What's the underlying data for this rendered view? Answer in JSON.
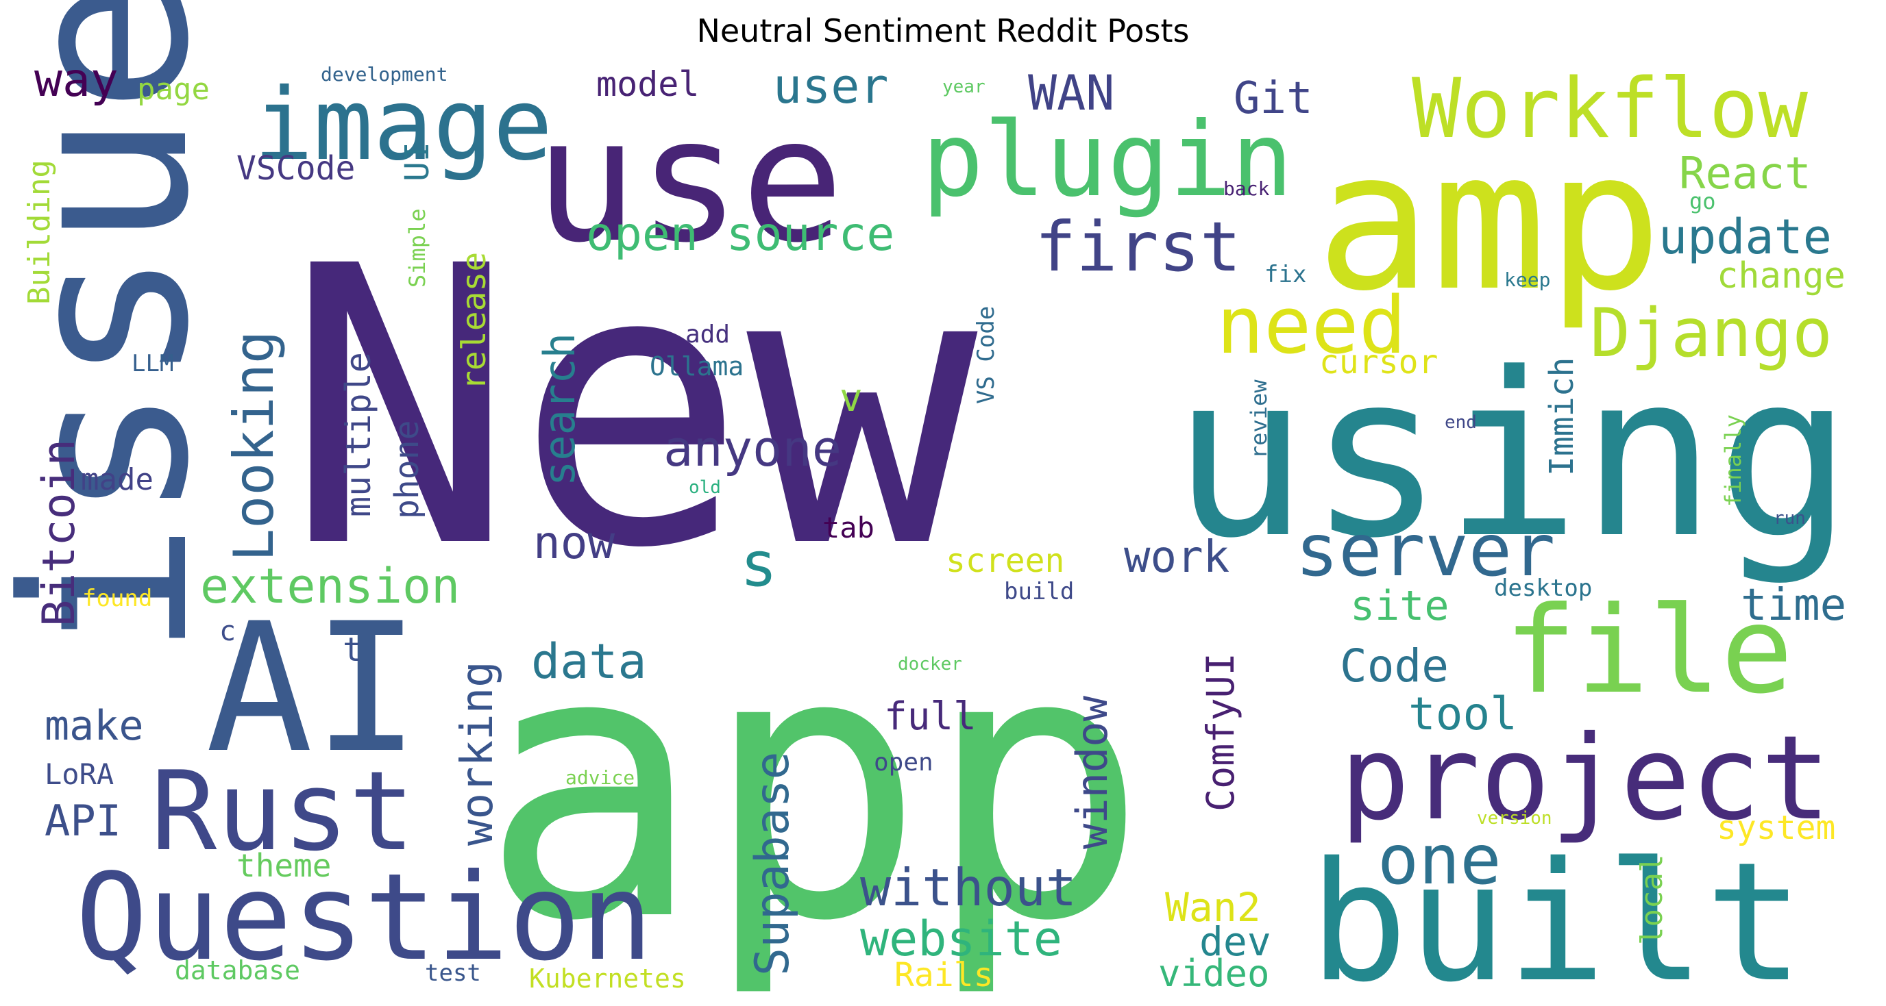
{
  "chart_data": {
    "type": "wordcloud",
    "title": "Neutral Sentiment Reddit Posts",
    "colormap": "viridis",
    "background": "#ffffff",
    "words": [
      {
        "text": "New",
        "weight": 1.0,
        "color": "#46287a"
      },
      {
        "text": "app",
        "weight": 0.93,
        "color": "#52c46a"
      },
      {
        "text": "issue",
        "weight": 0.62,
        "color": "#3b5b8e"
      },
      {
        "text": "use",
        "weight": 0.55,
        "color": "#482576"
      },
      {
        "text": "using",
        "weight": 0.54,
        "color": "#25858e"
      },
      {
        "text": "amp",
        "weight": 0.53,
        "color": "#cde11d"
      },
      {
        "text": "built",
        "weight": 0.48,
        "color": "#23888e"
      },
      {
        "text": "AI",
        "weight": 0.45,
        "color": "#3b5a8c"
      },
      {
        "text": "Question",
        "weight": 0.4,
        "color": "#3e4a89"
      },
      {
        "text": "project",
        "weight": 0.38,
        "color": "#472c7a"
      },
      {
        "text": "Rust",
        "weight": 0.36,
        "color": "#3f4889"
      },
      {
        "text": "file",
        "weight": 0.35,
        "color": "#79d151"
      },
      {
        "text": "image",
        "weight": 0.33,
        "color": "#2c728e"
      },
      {
        "text": "plugin",
        "weight": 0.33,
        "color": "#4ac16d"
      },
      {
        "text": "Workflow",
        "weight": 0.3,
        "color": "#bddf26"
      },
      {
        "text": "server",
        "weight": 0.25,
        "color": "#31688e"
      },
      {
        "text": "need",
        "weight": 0.24,
        "color": "#dde318"
      },
      {
        "text": "Django",
        "weight": 0.24,
        "color": "#b5de2b"
      },
      {
        "text": "first",
        "weight": 0.22,
        "color": "#414487"
      },
      {
        "text": "Looking",
        "weight": 0.21,
        "color": "#33638d"
      },
      {
        "text": "one",
        "weight": 0.19,
        "color": "#2d718e"
      },
      {
        "text": "without",
        "weight": 0.16,
        "color": "#3b528b"
      },
      {
        "text": "website",
        "weight": 0.16,
        "color": "#2fb47c"
      },
      {
        "text": "Supabase",
        "weight": 0.16,
        "color": "#31688e"
      },
      {
        "text": "extension",
        "weight": 0.15,
        "color": "#5ec962"
      },
      {
        "text": "Bitcoin",
        "weight": 0.15,
        "color": "#472d7b"
      },
      {
        "text": "s",
        "weight": 0.15,
        "color": "#228c8d"
      },
      {
        "text": "open source",
        "weight": 0.14,
        "color": "#3ebc73"
      },
      {
        "text": "update",
        "weight": 0.14,
        "color": "#29788e"
      },
      {
        "text": "working",
        "weight": 0.14,
        "color": "#39558c"
      },
      {
        "text": "anyone",
        "weight": 0.14,
        "color": "#453882"
      },
      {
        "text": "data",
        "weight": 0.14,
        "color": "#2a778e"
      },
      {
        "text": "Code",
        "weight": 0.14,
        "color": "#2c738e"
      },
      {
        "text": "window",
        "weight": 0.14,
        "color": "#3e4989"
      },
      {
        "text": "user",
        "weight": 0.13,
        "color": "#2a768e"
      },
      {
        "text": "search",
        "weight": 0.13,
        "color": "#277f8e"
      },
      {
        "text": "work",
        "weight": 0.12,
        "color": "#3d4e8a"
      },
      {
        "text": "time",
        "weight": 0.12,
        "color": "#2e6d8e"
      },
      {
        "text": "tool",
        "weight": 0.12,
        "color": "#25838e"
      },
      {
        "text": "ComfyUI",
        "weight": 0.12,
        "color": "#482071"
      },
      {
        "text": "React",
        "weight": 0.12,
        "color": "#86d549"
      },
      {
        "text": "Wan2",
        "weight": 0.12,
        "color": "#dde318"
      },
      {
        "text": "WAN",
        "weight": 0.12,
        "color": "#404387"
      },
      {
        "text": "now",
        "weight": 0.12,
        "color": "#433e85"
      },
      {
        "text": "site",
        "weight": 0.11,
        "color": "#46c06f"
      },
      {
        "text": "make",
        "weight": 0.11,
        "color": "#3a548c"
      },
      {
        "text": "way",
        "weight": 0.11,
        "color": "#440154"
      },
      {
        "text": "Git",
        "weight": 0.11,
        "color": "#404588"
      },
      {
        "text": "API",
        "weight": 0.11,
        "color": "#3c4f8a"
      },
      {
        "text": "dev",
        "weight": 0.1,
        "color": "#24868e"
      },
      {
        "text": "video",
        "weight": 0.1,
        "color": "#35b779"
      },
      {
        "text": "full",
        "weight": 0.1,
        "color": "#472a7a"
      },
      {
        "text": "model",
        "weight": 0.09,
        "color": "#482374"
      },
      {
        "text": "multiple",
        "weight": 0.09,
        "color": "#3f4788"
      },
      {
        "text": "Immich",
        "weight": 0.09,
        "color": "#2c728e"
      },
      {
        "text": "v",
        "weight": 0.09,
        "color": "#8fd744"
      },
      {
        "text": "release",
        "weight": 0.09,
        "color": "#a8db34"
      },
      {
        "text": "VSCode",
        "weight": 0.09,
        "color": "#453882"
      },
      {
        "text": "Rails",
        "weight": 0.09,
        "color": "#fde725"
      },
      {
        "text": "phone",
        "weight": 0.08,
        "color": "#3e4a89"
      },
      {
        "text": "cursor",
        "weight": 0.08,
        "color": "#dfe318"
      },
      {
        "text": "change",
        "weight": 0.08,
        "color": "#a0da39"
      },
      {
        "text": "screen",
        "weight": 0.08,
        "color": "#d0e11c"
      },
      {
        "text": "system",
        "weight": 0.08,
        "color": "#fde725"
      },
      {
        "text": "theme",
        "weight": 0.08,
        "color": "#65cb5e"
      },
      {
        "text": "local",
        "weight": 0.08,
        "color": "#7ad151"
      },
      {
        "text": "UI",
        "weight": 0.08,
        "color": "#2a788e"
      },
      {
        "text": "Building",
        "weight": 0.08,
        "color": "#a2da37"
      },
      {
        "text": "page",
        "weight": 0.08,
        "color": "#93d741"
      },
      {
        "text": "LoRA",
        "weight": 0.07,
        "color": "#3e4c8a"
      },
      {
        "text": "made",
        "weight": 0.07,
        "color": "#414287"
      },
      {
        "text": "tab",
        "weight": 0.07,
        "color": "#440154"
      },
      {
        "text": "t",
        "weight": 0.07,
        "color": "#3b518b"
      },
      {
        "text": "c",
        "weight": 0.06,
        "color": "#3d4d8a"
      },
      {
        "text": "LLM",
        "weight": 0.06,
        "color": "#355f8d"
      },
      {
        "text": "Ollama",
        "weight": 0.06,
        "color": "#2c738e"
      },
      {
        "text": "add",
        "weight": 0.06,
        "color": "#46317e"
      },
      {
        "text": "open",
        "weight": 0.06,
        "color": "#3e4989"
      },
      {
        "text": "desktop",
        "weight": 0.06,
        "color": "#2b748e"
      },
      {
        "text": "build",
        "weight": 0.06,
        "color": "#3e4989"
      },
      {
        "text": "VS Code",
        "weight": 0.06,
        "color": "#2f6b8e"
      },
      {
        "text": "Kubernetes",
        "weight": 0.06,
        "color": "#c2df23"
      },
      {
        "text": "database",
        "weight": 0.06,
        "color": "#5ec962"
      },
      {
        "text": "test",
        "weight": 0.06,
        "color": "#39568c"
      },
      {
        "text": "found",
        "weight": 0.05,
        "color": "#fde725"
      },
      {
        "text": "Simple",
        "weight": 0.05,
        "color": "#7ad151"
      },
      {
        "text": "review",
        "weight": 0.05,
        "color": "#2e6e8e"
      },
      {
        "text": "finally",
        "weight": 0.05,
        "color": "#7ad151"
      },
      {
        "text": "fix",
        "weight": 0.05,
        "color": "#2c738e"
      },
      {
        "text": "go",
        "weight": 0.05,
        "color": "#4ac16d"
      },
      {
        "text": "keep",
        "weight": 0.04,
        "color": "#2a788e"
      },
      {
        "text": "back",
        "weight": 0.04,
        "color": "#482173"
      },
      {
        "text": "development",
        "weight": 0.04,
        "color": "#33638d"
      },
      {
        "text": "year",
        "weight": 0.04,
        "color": "#5ec962"
      },
      {
        "text": "end",
        "weight": 0.04,
        "color": "#3f4788"
      },
      {
        "text": "old",
        "weight": 0.04,
        "color": "#2ab07f"
      },
      {
        "text": "run",
        "weight": 0.04,
        "color": "#3b528b"
      },
      {
        "text": "docker",
        "weight": 0.04,
        "color": "#5ec962"
      },
      {
        "text": "advice",
        "weight": 0.04,
        "color": "#7ad151"
      },
      {
        "text": "version",
        "weight": 0.04,
        "color": "#bddf26"
      }
    ]
  }
}
